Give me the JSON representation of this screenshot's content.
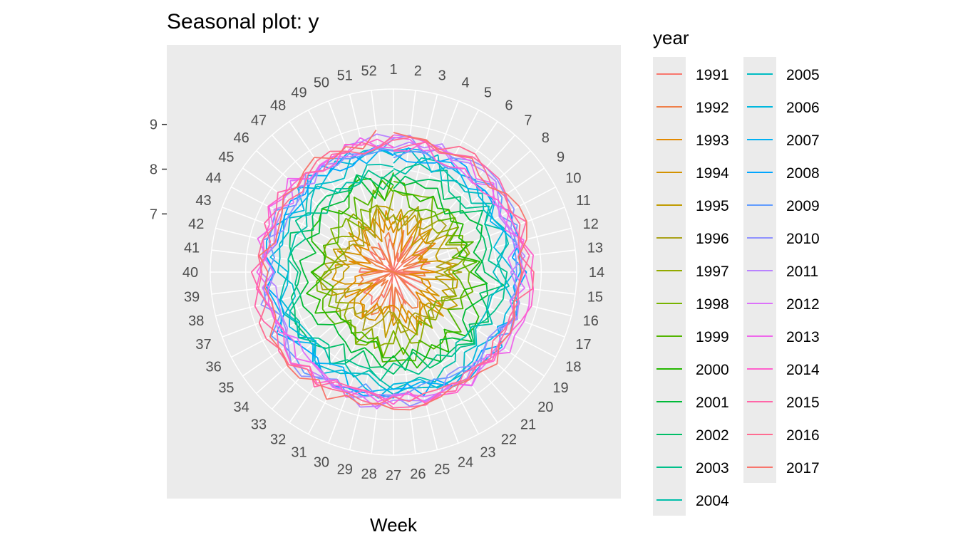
{
  "chart_data": {
    "type": "line",
    "subtype": "polar-seasonal",
    "title": "Seasonal plot: y",
    "xlabel": "Week",
    "ylabel": "",
    "x_ticks": [
      "1",
      "2",
      "3",
      "4",
      "5",
      "6",
      "7",
      "8",
      "9",
      "10",
      "11",
      "12",
      "13",
      "14",
      "15",
      "16",
      "17",
      "18",
      "19",
      "20",
      "21",
      "22",
      "23",
      "24",
      "25",
      "26",
      "27",
      "28",
      "29",
      "30",
      "31",
      "32",
      "33",
      "34",
      "35",
      "36",
      "37",
      "38",
      "39",
      "40",
      "41",
      "42",
      "43",
      "44",
      "45",
      "46",
      "47",
      "48",
      "49",
      "50",
      "51",
      "52"
    ],
    "y_ticks": [
      "7",
      "8",
      "9"
    ],
    "y_tick_values": [
      7,
      8,
      9
    ],
    "r_range": [
      5.7,
      9.6
    ],
    "grid": true,
    "legend_title": "year",
    "legend_placement": "right",
    "years": [
      1991,
      1992,
      1993,
      1994,
      1995,
      1996,
      1997,
      1998,
      1999,
      2000,
      2001,
      2002,
      2003,
      2004,
      2005,
      2006,
      2007,
      2008,
      2009,
      2010,
      2011,
      2012,
      2013,
      2014,
      2015,
      2016,
      2017
    ],
    "year_labels": [
      "1991",
      "1992",
      "1993",
      "1994",
      "1995",
      "1996",
      "1997",
      "1998",
      "1999",
      "2000",
      "2001",
      "2002",
      "2003",
      "2004",
      "2005",
      "2006",
      "2007",
      "2008",
      "2009",
      "2010",
      "2011",
      "2012",
      "2013",
      "2014",
      "2015",
      "2016",
      "2017"
    ],
    "series_colors": [
      "#F8766D",
      "#EF7F49",
      "#E38900",
      "#D39200",
      "#C09B00",
      "#AAA219",
      "#93AA00",
      "#77B300",
      "#53B400",
      "#25B700",
      "#00BA38",
      "#00BE67",
      "#00C08B",
      "#00BFAA",
      "#00BCC3",
      "#00B8DE",
      "#00B1F4",
      "#00A5FF",
      "#619CFF",
      "#8F91FF",
      "#B983FF",
      "#DC71FA",
      "#EF67EB",
      "#FF61CC",
      "#FF66A8",
      "#FF6C91",
      "#F8766D"
    ],
    "series_means": [
      6.0,
      6.25,
      6.55,
      6.7,
      6.85,
      6.95,
      7.1,
      7.25,
      7.4,
      7.55,
      7.7,
      7.85,
      8.0,
      8.1,
      8.2,
      8.3,
      8.38,
      8.45,
      8.5,
      8.55,
      8.55,
      8.55,
      8.6,
      8.6,
      8.65,
      8.65,
      8.7
    ],
    "series_amplitude": [
      0.55,
      0.5,
      0.45,
      0.42,
      0.4,
      0.38,
      0.35,
      0.35,
      0.32,
      0.3,
      0.3,
      0.28,
      0.26,
      0.25,
      0.24,
      0.22,
      0.22,
      0.2,
      0.2,
      0.2,
      0.2,
      0.2,
      0.2,
      0.2,
      0.2,
      0.2,
      0.2
    ]
  }
}
